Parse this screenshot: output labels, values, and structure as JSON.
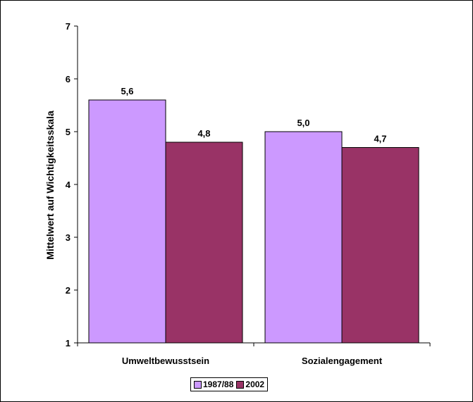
{
  "chart_data": {
    "type": "bar",
    "title": "",
    "xlabel": "",
    "ylabel": "Mittelwert auf Wichtigkeitsskala",
    "ylim": [
      1,
      7
    ],
    "yticks": [
      1,
      2,
      3,
      4,
      5,
      6,
      7
    ],
    "categories": [
      "Umweltbewusstsein",
      "Sozialengagement"
    ],
    "series": [
      {
        "name": "1987/88",
        "values": [
          5.6,
          5.0
        ],
        "labels": [
          "5,6",
          "5,0"
        ],
        "color": "#cc99ff"
      },
      {
        "name": "2002",
        "values": [
          4.8,
          4.7
        ],
        "labels": [
          "4,8",
          "4,7"
        ],
        "color": "#993366"
      }
    ],
    "grid": false,
    "legend_position": "bottom"
  }
}
